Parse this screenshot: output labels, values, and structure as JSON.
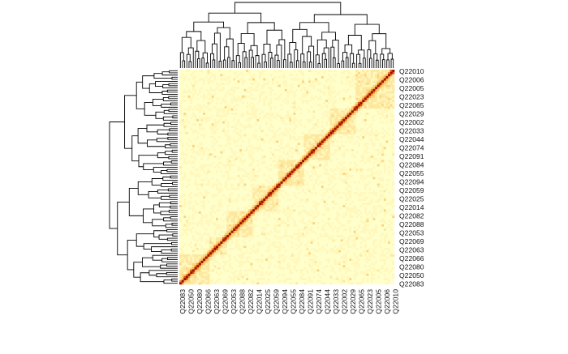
{
  "chart_data": {
    "type": "heatmap",
    "n": 100,
    "row_labels": [
      "Q22010",
      "Q22006",
      "Q22005",
      "Q22023",
      "Q22065",
      "Q22029",
      "Q22002",
      "Q22033",
      "Q22044",
      "Q22074",
      "Q22091",
      "Q22084",
      "Q22055",
      "Q22094",
      "Q22059",
      "Q22025",
      "Q22014",
      "Q22082",
      "Q22088",
      "Q22053",
      "Q22069",
      "Q22063",
      "Q22066",
      "Q22080",
      "Q22050",
      "Q22083"
    ],
    "col_labels": [
      "Q22083",
      "Q22050",
      "Q22080",
      "Q22066",
      "Q22063",
      "Q22069",
      "Q22053",
      "Q22088",
      "Q22082",
      "Q22014",
      "Q22025",
      "Q22059",
      "Q22094",
      "Q22055",
      "Q22084",
      "Q22091",
      "Q22074",
      "Q22044",
      "Q22033",
      "Q22002",
      "Q22029",
      "Q22065",
      "Q22023",
      "Q22005",
      "Q22006",
      "Q22010"
    ],
    "palette": [
      "#ffffcc",
      "#fff7bc",
      "#fee8a0",
      "#fdd47a",
      "#fcb050",
      "#f58a2e",
      "#e2541c",
      "#c02a10",
      "#981200"
    ],
    "diagonal_color": "#981200",
    "dendrograms": [
      "top",
      "left"
    ],
    "labels_visible_every": 4
  }
}
